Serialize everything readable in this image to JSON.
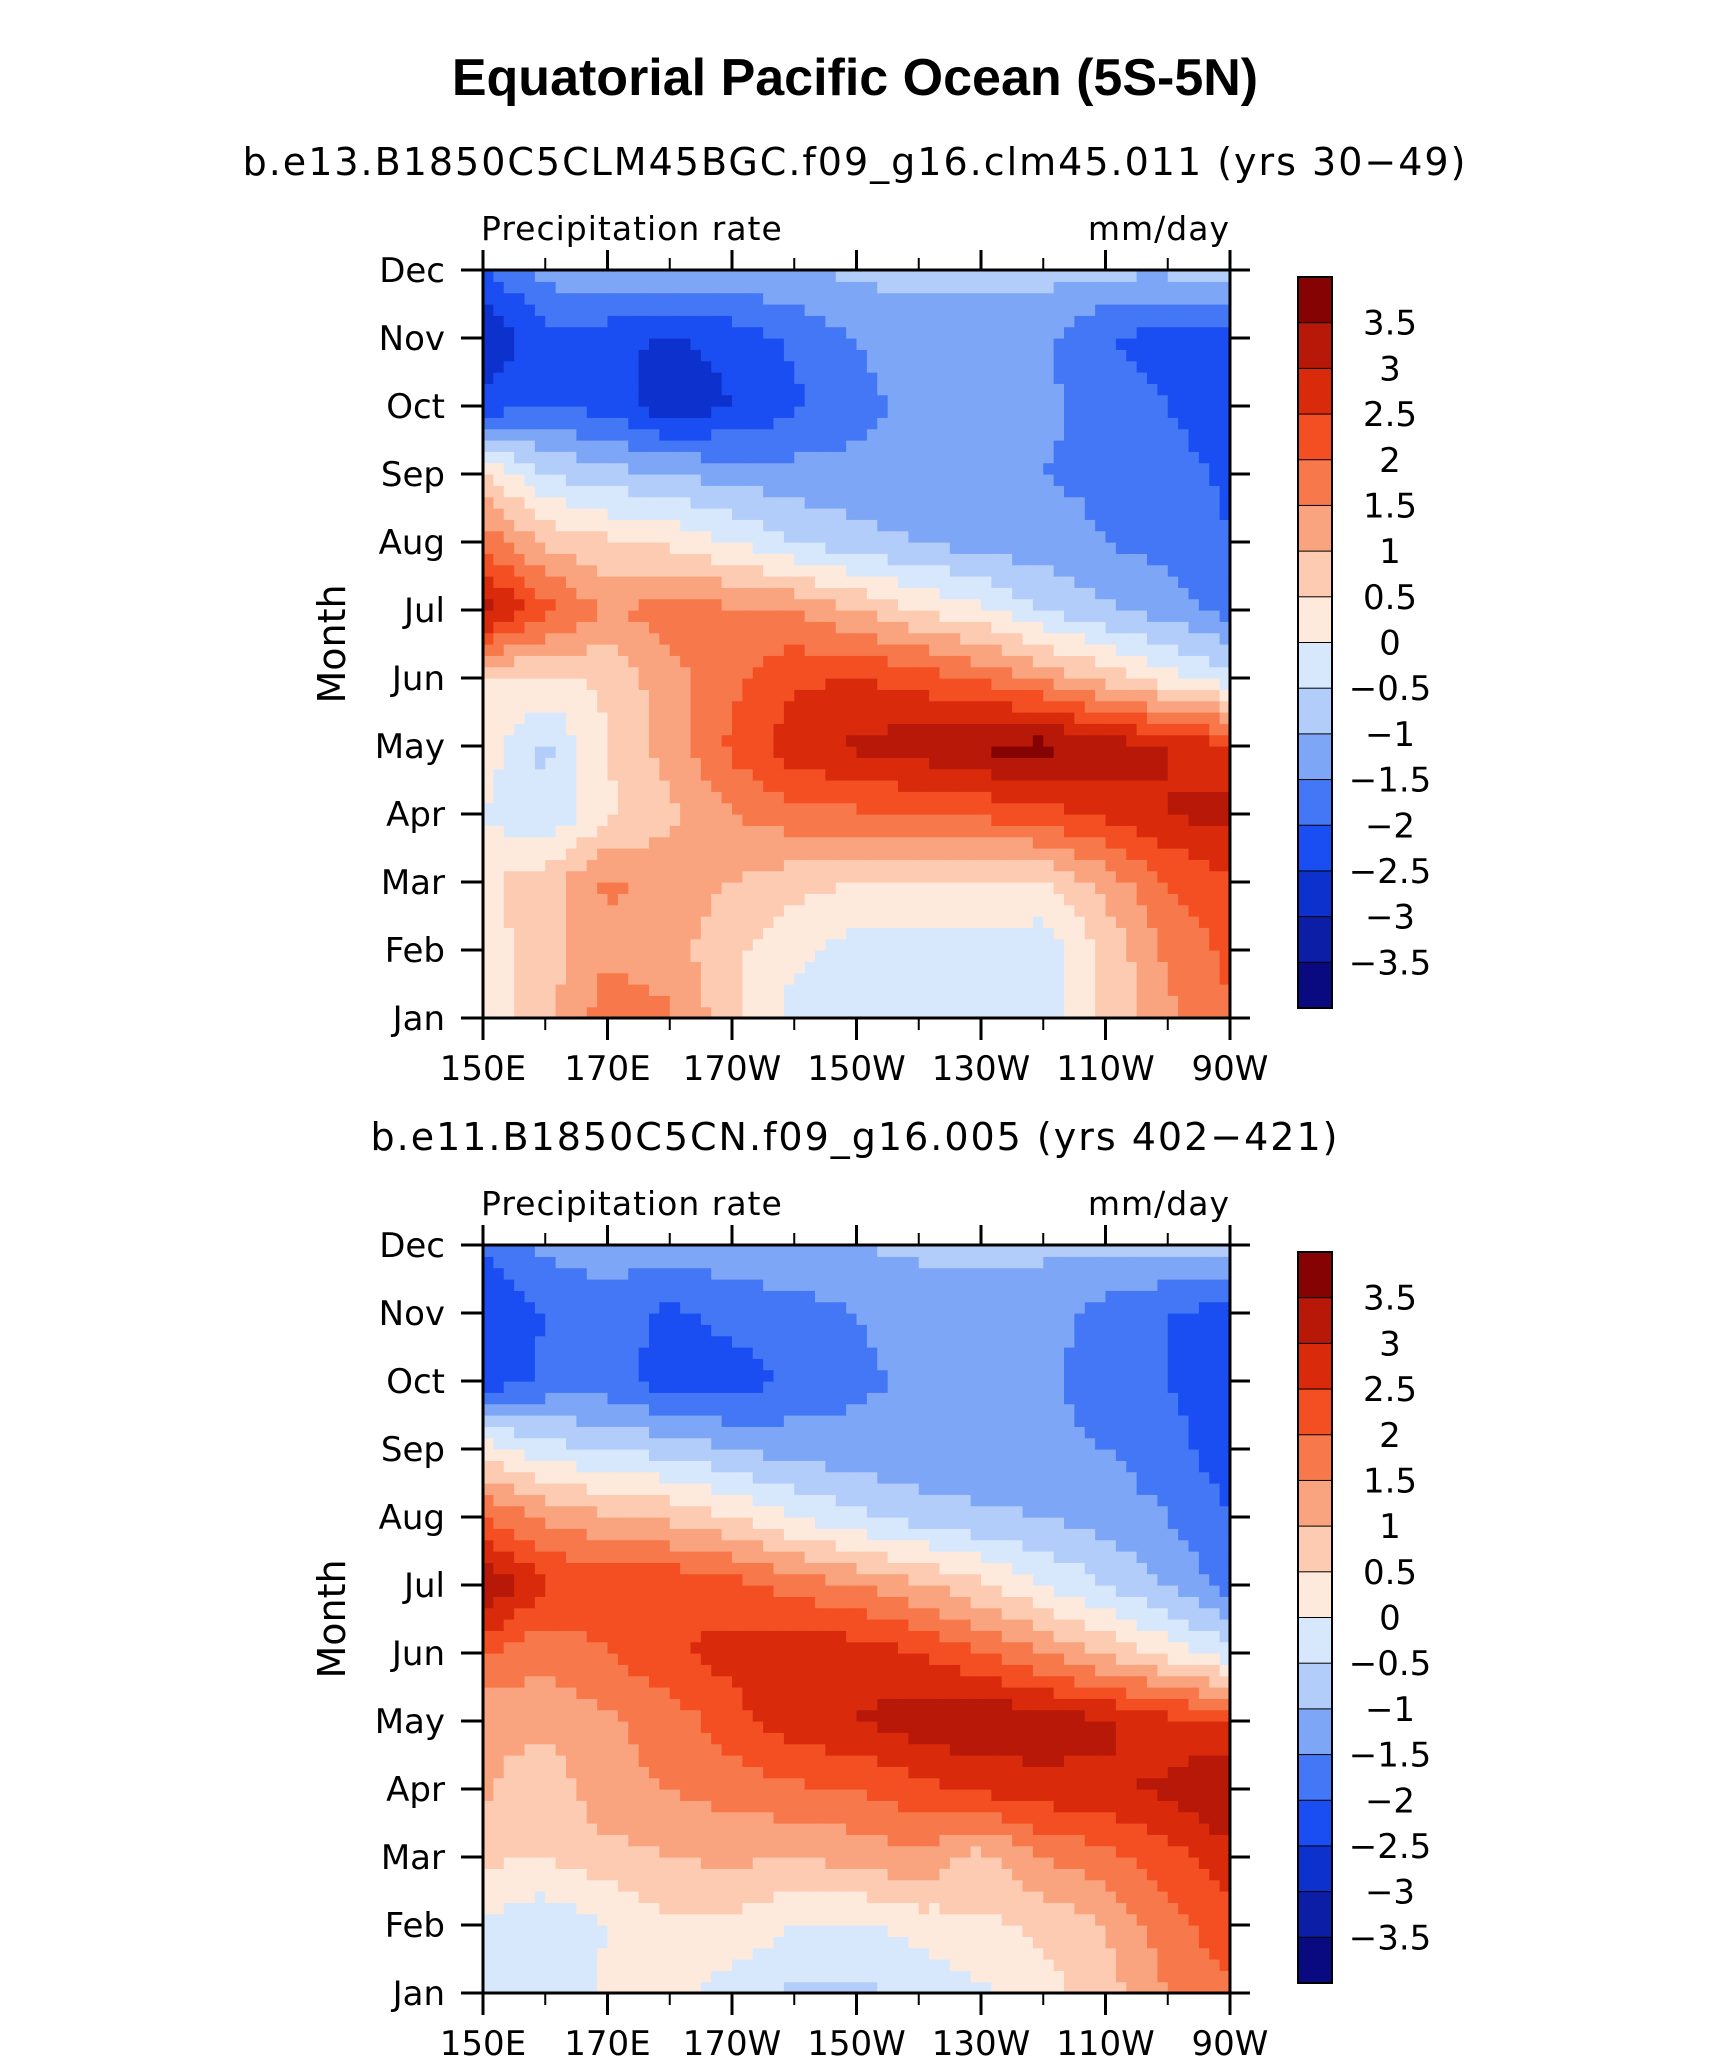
{
  "title": "Equatorial Pacific Ocean (5S-5N)",
  "colors": {
    "levels": [
      -3.5,
      -3,
      -2.5,
      -2,
      -1.5,
      -1,
      -0.5,
      0,
      0.5,
      1,
      1.5,
      2,
      2.5,
      3,
      3.5
    ],
    "fills": [
      "#0a0a80",
      "#0d1ea6",
      "#0c31cc",
      "#1a4df2",
      "#4477f5",
      "#7ea6f7",
      "#b3cdfa",
      "#d8e8fc",
      "#fdeadd",
      "#fccbb1",
      "#f9a47e",
      "#f7784a",
      "#f34f23",
      "#d92b0c",
      "#b81808",
      "#850302"
    ]
  },
  "chart_data": [
    {
      "type": "heatmap",
      "subtitle": "b.e13.B1850C5CLM45BGC.f09_g16.clm45.011 (yrs 30−49)",
      "field_label": "Precipitation rate",
      "units": "mm/day",
      "ylabel": "Month",
      "x_ticks": [
        "150E",
        "170E",
        "170W",
        "150W",
        "130W",
        "110W",
        "90W"
      ],
      "y_ticks": [
        "Jan",
        "Feb",
        "Mar",
        "Apr",
        "May",
        "Jun",
        "Jul",
        "Aug",
        "Sep",
        "Oct",
        "Nov",
        "Dec"
      ],
      "colorbar_labels": [
        "3.5",
        "3",
        "2.5",
        "2",
        "1.5",
        "1",
        "0.5",
        "0",
        "−0.5",
        "−1",
        "−1.5",
        "−2",
        "−2.5",
        "−3",
        "−3.5"
      ],
      "x": [
        150,
        160,
        170,
        180,
        190,
        200,
        210,
        220,
        230,
        240,
        250,
        260,
        270
      ],
      "months": [
        "Jan",
        "Feb",
        "Mar",
        "Apr",
        "May",
        "Jun",
        "Jul",
        "Aug",
        "Sep",
        "Oct",
        "Nov",
        "Dec"
      ],
      "values": [
        [
          0.2,
          0.9,
          1.8,
          1.6,
          0.6,
          -0.2,
          -0.4,
          -0.4,
          -0.4,
          -0.3,
          0.6,
          1.4,
          2.0
        ],
        [
          0.3,
          0.7,
          1.4,
          1.2,
          0.6,
          0.1,
          -0.2,
          -0.3,
          -0.3,
          -0.3,
          0.6,
          1.6,
          2.1
        ],
        [
          0.4,
          0.8,
          1.6,
          1.3,
          1.0,
          0.7,
          0.5,
          0.5,
          0.5,
          0.4,
          1.2,
          2.0,
          2.4
        ],
        [
          0.0,
          -0.5,
          0.4,
          0.9,
          1.5,
          1.8,
          1.9,
          2.0,
          2.1,
          2.3,
          2.6,
          3.0,
          3.2
        ],
        [
          0.3,
          -0.6,
          0.5,
          1.2,
          2.1,
          2.8,
          3.1,
          3.3,
          3.6,
          3.7,
          3.3,
          3.0,
          2.6
        ],
        [
          0.5,
          0.4,
          0.6,
          1.3,
          1.9,
          2.4,
          2.5,
          2.3,
          1.9,
          1.4,
          0.8,
          0.2,
          -0.3
        ],
        [
          3.3,
          2.2,
          1.4,
          1.8,
          1.6,
          1.5,
          1.0,
          0.5,
          0.1,
          -0.5,
          -0.9,
          -1.2,
          -1.7
        ],
        [
          1.9,
          0.9,
          0.6,
          0.4,
          0.0,
          -0.5,
          -0.8,
          -1.0,
          -1.2,
          -1.3,
          -1.5,
          -1.7,
          -2.0
        ],
        [
          0.6,
          -0.5,
          -0.8,
          -1.0,
          -1.2,
          -1.3,
          -1.4,
          -1.4,
          -1.4,
          -1.5,
          -1.6,
          -1.8,
          -2.1
        ],
        [
          -2.3,
          -2.0,
          -2.2,
          -2.9,
          -2.5,
          -2.1,
          -1.6,
          -1.4,
          -1.4,
          -1.4,
          -1.7,
          -2.0,
          -2.3
        ],
        [
          -3.0,
          -2.2,
          -2.3,
          -2.6,
          -2.3,
          -1.9,
          -1.5,
          -1.3,
          -1.3,
          -1.4,
          -2.0,
          -2.2,
          -2.3
        ],
        [
          -2.1,
          -1.3,
          -1.1,
          -1.1,
          -1.1,
          -1.0,
          -0.9,
          -0.8,
          -0.8,
          -0.8,
          -0.9,
          -0.9,
          -0.6
        ]
      ]
    },
    {
      "type": "heatmap",
      "subtitle": "b.e11.B1850C5CN.f09_g16.005 (yrs 402−421)",
      "field_label": "Precipitation rate",
      "units": "mm/day",
      "ylabel": "Month",
      "x_ticks": [
        "150E",
        "170E",
        "170W",
        "150W",
        "130W",
        "110W",
        "90W"
      ],
      "y_ticks": [
        "Jan",
        "Feb",
        "Mar",
        "Apr",
        "May",
        "Jun",
        "Jul",
        "Aug",
        "Sep",
        "Oct",
        "Nov",
        "Dec"
      ],
      "colorbar_labels": [
        "3.5",
        "3",
        "2.5",
        "2",
        "1.5",
        "1",
        "0.5",
        "0",
        "−0.5",
        "−1",
        "−1.5",
        "−2",
        "−2.5",
        "−3",
        "−3.5"
      ],
      "x": [
        150,
        160,
        170,
        180,
        190,
        200,
        210,
        220,
        230,
        240,
        250,
        260,
        270
      ],
      "months": [
        "Jan",
        "Feb",
        "Mar",
        "Apr",
        "May",
        "Jun",
        "Jul",
        "Aug",
        "Sep",
        "Oct",
        "Nov",
        "Dec"
      ],
      "values": [
        [
          -0.2,
          -0.4,
          0.1,
          0.3,
          -0.3,
          -0.6,
          -0.6,
          -0.4,
          -0.1,
          0.3,
          0.8,
          1.5,
          1.9
        ],
        [
          -0.1,
          -0.4,
          0.0,
          0.4,
          0.4,
          0.0,
          -0.1,
          0.2,
          0.4,
          0.6,
          1.0,
          1.8,
          2.3
        ],
        [
          0.6,
          0.5,
          0.8,
          1.0,
          1.1,
          1.0,
          1.2,
          1.4,
          0.8,
          1.5,
          1.8,
          2.3,
          2.8
        ],
        [
          1.1,
          0.6,
          1.4,
          1.5,
          1.7,
          1.9,
          2.0,
          2.3,
          2.6,
          2.8,
          2.9,
          3.1,
          3.6
        ],
        [
          1.1,
          1.2,
          1.4,
          1.7,
          2.3,
          2.8,
          3.0,
          3.3,
          3.5,
          3.3,
          3.1,
          2.7,
          2.4
        ],
        [
          2.0,
          1.6,
          2.0,
          2.4,
          2.7,
          2.9,
          2.8,
          2.5,
          2.0,
          1.5,
          0.9,
          0.3,
          -0.3
        ],
        [
          3.6,
          2.6,
          2.3,
          2.4,
          2.2,
          1.8,
          1.5,
          1.1,
          0.6,
          0.0,
          -0.5,
          -1.0,
          -1.7
        ],
        [
          2.0,
          1.4,
          1.1,
          0.9,
          0.5,
          0.0,
          -0.4,
          -0.7,
          -0.9,
          -1.0,
          -1.2,
          -1.5,
          -2.0
        ],
        [
          0.3,
          -0.3,
          -0.5,
          -0.7,
          -1.0,
          -1.2,
          -1.3,
          -1.4,
          -1.4,
          -1.4,
          -1.5,
          -1.8,
          -2.3
        ],
        [
          -2.3,
          -1.9,
          -1.8,
          -2.3,
          -2.3,
          -1.9,
          -1.6,
          -1.4,
          -1.3,
          -1.4,
          -1.7,
          -2.0,
          -2.3
        ],
        [
          -2.5,
          -2.0,
          -1.7,
          -2.1,
          -1.8,
          -1.7,
          -1.5,
          -1.3,
          -1.3,
          -1.3,
          -1.7,
          -2.0,
          -2.2
        ],
        [
          -2.0,
          -1.4,
          -1.2,
          -1.3,
          -1.2,
          -1.1,
          -1.0,
          -0.9,
          -0.9,
          -0.9,
          -0.9,
          -0.9,
          -0.8
        ]
      ]
    }
  ]
}
